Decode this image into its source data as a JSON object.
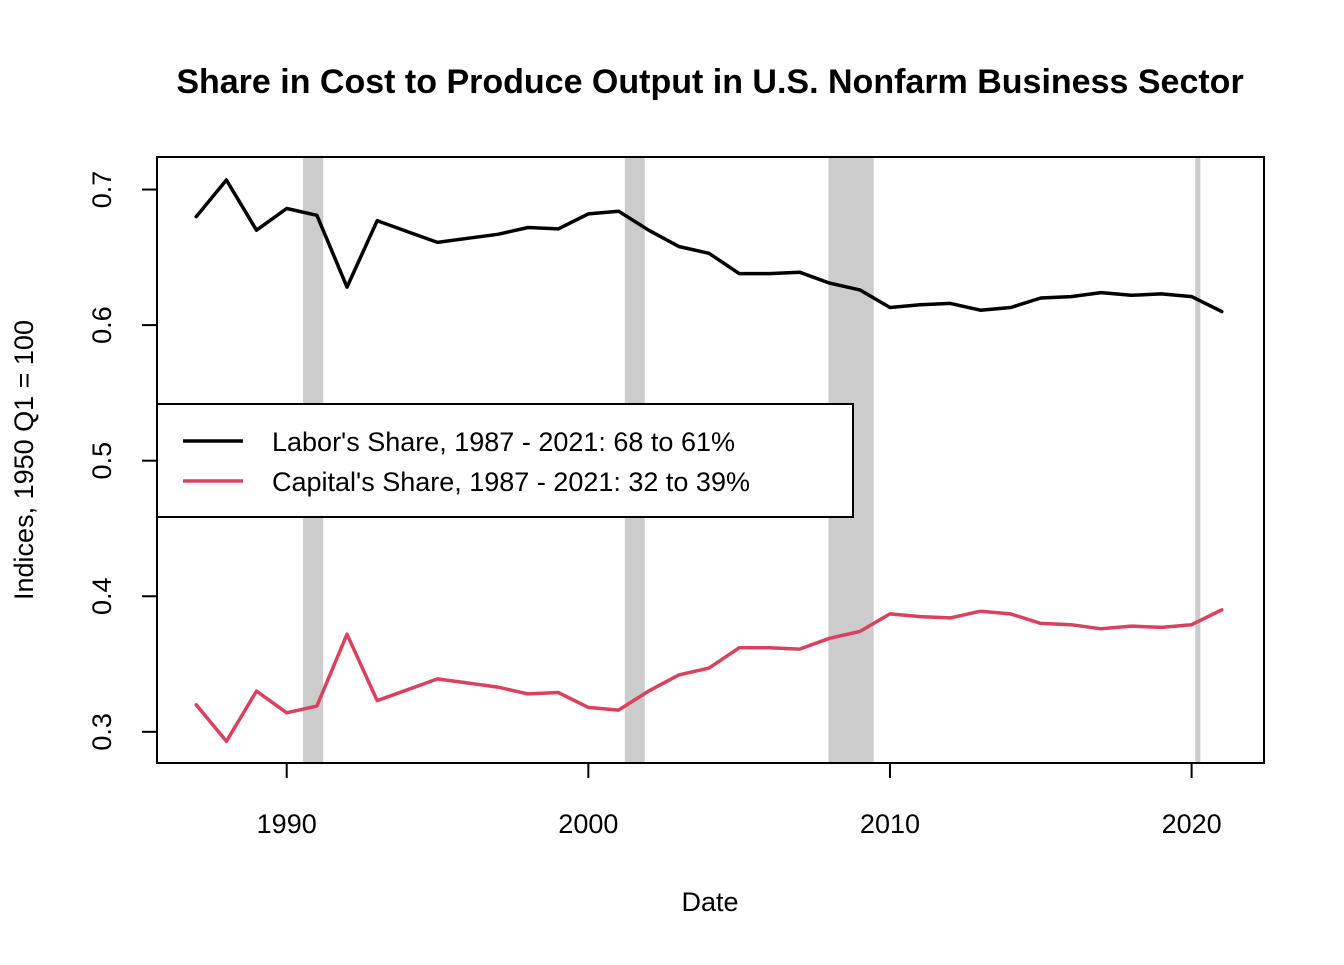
{
  "chart_data": {
    "type": "line",
    "title": "Share in Cost to Produce Output in U.S. Nonfarm Business Sector",
    "xlabel": "Date",
    "ylabel": "Indices, 1950 Q1 = 100",
    "xlim": [
      1985.7,
      2022.4
    ],
    "ylim": [
      0.277,
      0.724
    ],
    "x_ticks": [
      1990,
      2000,
      2010,
      2020
    ],
    "x_tick_labels": [
      "1990",
      "2000",
      "2010",
      "2020"
    ],
    "y_ticks": [
      0.3,
      0.4,
      0.5,
      0.6,
      0.7
    ],
    "y_tick_labels": [
      "0.3",
      "0.4",
      "0.5",
      "0.6",
      "0.7"
    ],
    "recessions": [
      [
        1990.54,
        1991.21
      ],
      [
        2001.21,
        2001.87
      ],
      [
        2007.96,
        2009.46
      ],
      [
        2020.12,
        2020.29
      ]
    ],
    "recession_color": "#cccccc",
    "x": [
      1987,
      1988,
      1989,
      1990,
      1991,
      1992,
      1993,
      1994,
      1995,
      1996,
      1997,
      1998,
      1999,
      2000,
      2001,
      2002,
      2003,
      2004,
      2005,
      2006,
      2007,
      2008,
      2009,
      2010,
      2011,
      2012,
      2013,
      2014,
      2015,
      2016,
      2017,
      2018,
      2019,
      2020,
      2021
    ],
    "series": [
      {
        "name": "Labor's Share, 1987 - 2021: 68 to 61%",
        "color": "#000000",
        "values": [
          0.68,
          0.707,
          0.67,
          0.686,
          0.681,
          0.628,
          0.677,
          0.669,
          0.661,
          0.664,
          0.667,
          0.672,
          0.671,
          0.682,
          0.684,
          0.67,
          0.658,
          0.653,
          0.638,
          0.638,
          0.639,
          0.631,
          0.626,
          0.613,
          0.615,
          0.616,
          0.611,
          0.613,
          0.62,
          0.621,
          0.624,
          0.622,
          0.623,
          0.621,
          0.61
        ]
      },
      {
        "name": "Capital's Share, 1987 - 2021: 32 to 39%",
        "color": "#d9415f",
        "values": [
          0.32,
          0.293,
          0.33,
          0.314,
          0.319,
          0.372,
          0.323,
          0.331,
          0.339,
          0.336,
          0.333,
          0.328,
          0.329,
          0.318,
          0.316,
          0.33,
          0.342,
          0.347,
          0.362,
          0.362,
          0.361,
          0.369,
          0.374,
          0.387,
          0.385,
          0.384,
          0.389,
          0.387,
          0.38,
          0.379,
          0.376,
          0.378,
          0.377,
          0.379,
          0.39
        ]
      }
    ],
    "legend_position": "center-left"
  }
}
